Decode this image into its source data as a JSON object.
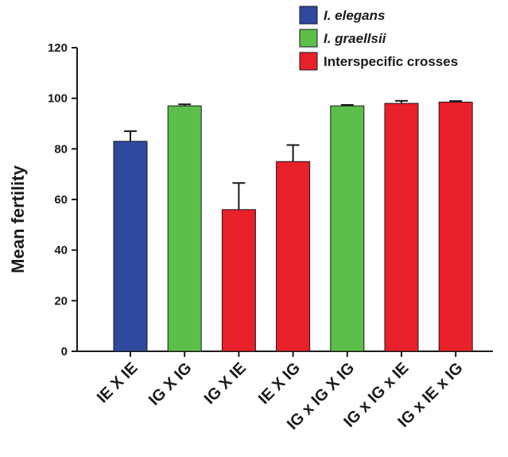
{
  "chart_data": {
    "type": "bar",
    "title": "",
    "xlabel": "",
    "ylabel": "Mean fertility",
    "ylim": [
      0,
      120
    ],
    "yticks": [
      0,
      20,
      40,
      60,
      80,
      100,
      120
    ],
    "grid": false,
    "legend_position": "top-right",
    "categories": [
      "IE X IE",
      "IG X IG",
      "IG X IE",
      "IE X IG",
      "IG x IG X IG",
      "IG x IG x IE",
      "IG x IE x IG"
    ],
    "values": [
      83,
      97,
      56,
      75,
      97,
      98,
      98.5
    ],
    "errors": [
      4,
      0.6,
      10.5,
      6.5,
      0.4,
      1,
      0.4
    ],
    "groups": [
      "I. elegans",
      "I. graellsii",
      "Interspecific crosses",
      "Interspecific crosses",
      "I. graellsii",
      "Interspecific crosses",
      "Interspecific crosses"
    ],
    "legend": [
      {
        "label": "I. elegans",
        "color": "#2e4a9e",
        "italic": true
      },
      {
        "label": "I. graellsii",
        "color": "#5cbf4a",
        "italic": true
      },
      {
        "label": "Interspecific crosses",
        "color": "#e8202a",
        "italic": false
      }
    ]
  }
}
